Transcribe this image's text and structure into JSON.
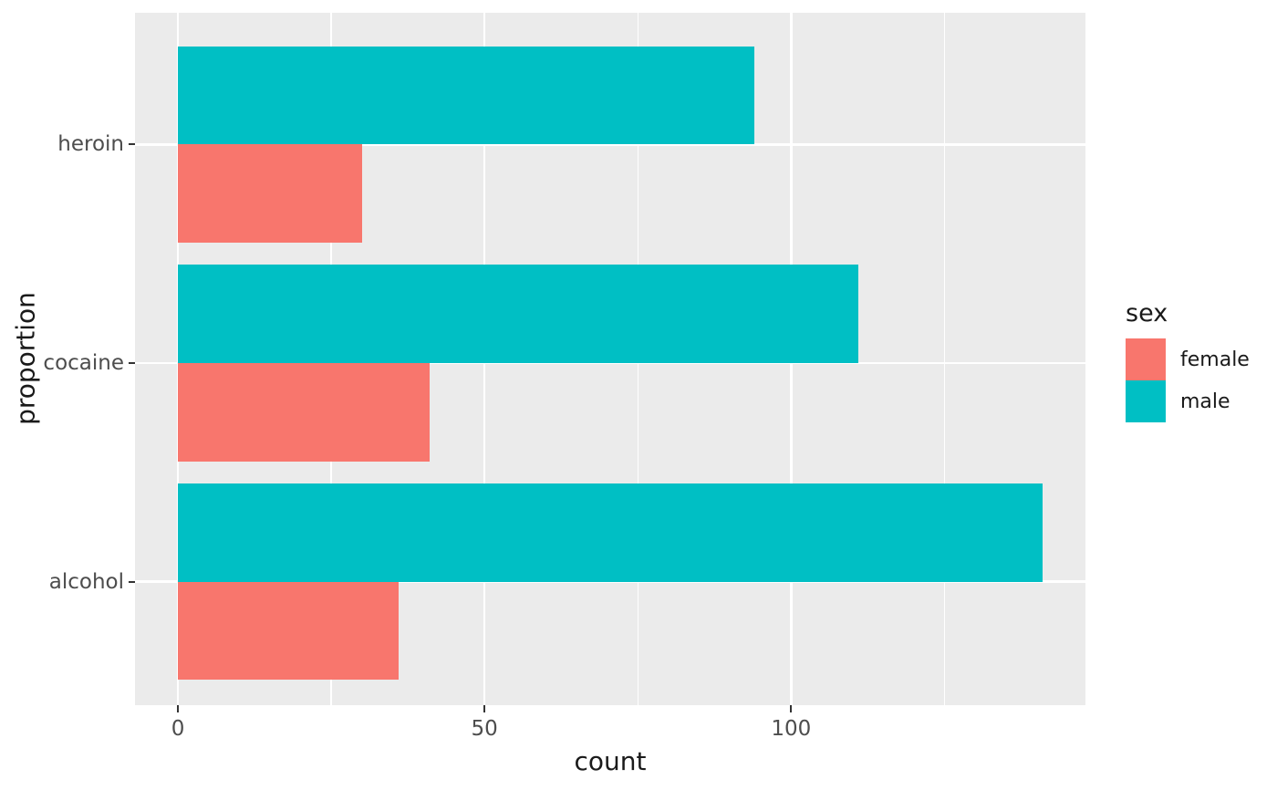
{
  "chart_data": {
    "type": "bar",
    "orientation": "horizontal",
    "title": "",
    "xlabel": "count",
    "ylabel": "proportion",
    "categories": [
      "heroin",
      "cocaine",
      "alcohol"
    ],
    "series": [
      {
        "name": "male",
        "color": "#00BFC4",
        "values": [
          94,
          111,
          141
        ]
      },
      {
        "name": "female",
        "color": "#F8766D",
        "values": [
          30,
          41,
          36
        ]
      }
    ],
    "axes": {
      "xlim": [
        -7,
        148
      ],
      "x_ticks": [
        0,
        50,
        100
      ],
      "x_tick_labels": [
        "0",
        "50",
        "100"
      ],
      "x_minor_ticks": [
        25,
        75,
        125
      ]
    },
    "legend": {
      "title": "sex",
      "position": "right",
      "entries": [
        {
          "label": "female",
          "color": "#F8766D"
        },
        {
          "label": "male",
          "color": "#00BFC4"
        }
      ]
    },
    "style": {
      "panel_background": "#EBEBEB",
      "grid_color": "#FFFFFF",
      "axis_text_color": "#4D4D4D",
      "title_text_color": "#1a1a1a",
      "tick_mark_color": "#333333"
    }
  }
}
